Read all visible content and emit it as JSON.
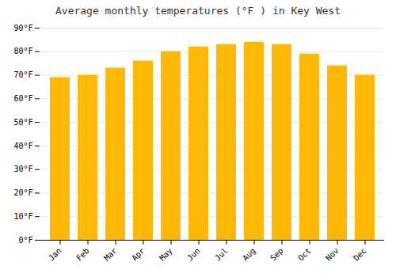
{
  "chart_data": {
    "type": "bar",
    "title": "Average monthly temperatures (°F ) in Key West",
    "categories": [
      "Jan",
      "Feb",
      "Mar",
      "Apr",
      "May",
      "Jun",
      "Jul",
      "Aug",
      "Sep",
      "Oct",
      "Nov",
      "Dec"
    ],
    "values": [
      69,
      70,
      73,
      76,
      80,
      82,
      83,
      84,
      83,
      79,
      74,
      70
    ],
    "color": "#FFB805",
    "ylim": [
      0,
      90
    ],
    "yticks": [
      {
        "value": 0,
        "label": "0°F"
      },
      {
        "value": 10,
        "label": "10°F"
      },
      {
        "value": 20,
        "label": "20°F"
      },
      {
        "value": 30,
        "label": "30°F"
      },
      {
        "value": 40,
        "label": "40°F"
      },
      {
        "value": 50,
        "label": "50°F"
      },
      {
        "value": 60,
        "label": "60°F"
      },
      {
        "value": 70,
        "label": "70°F"
      },
      {
        "value": 80,
        "label": "80°F"
      },
      {
        "value": 90,
        "label": "90°F"
      }
    ],
    "grid": true
  }
}
